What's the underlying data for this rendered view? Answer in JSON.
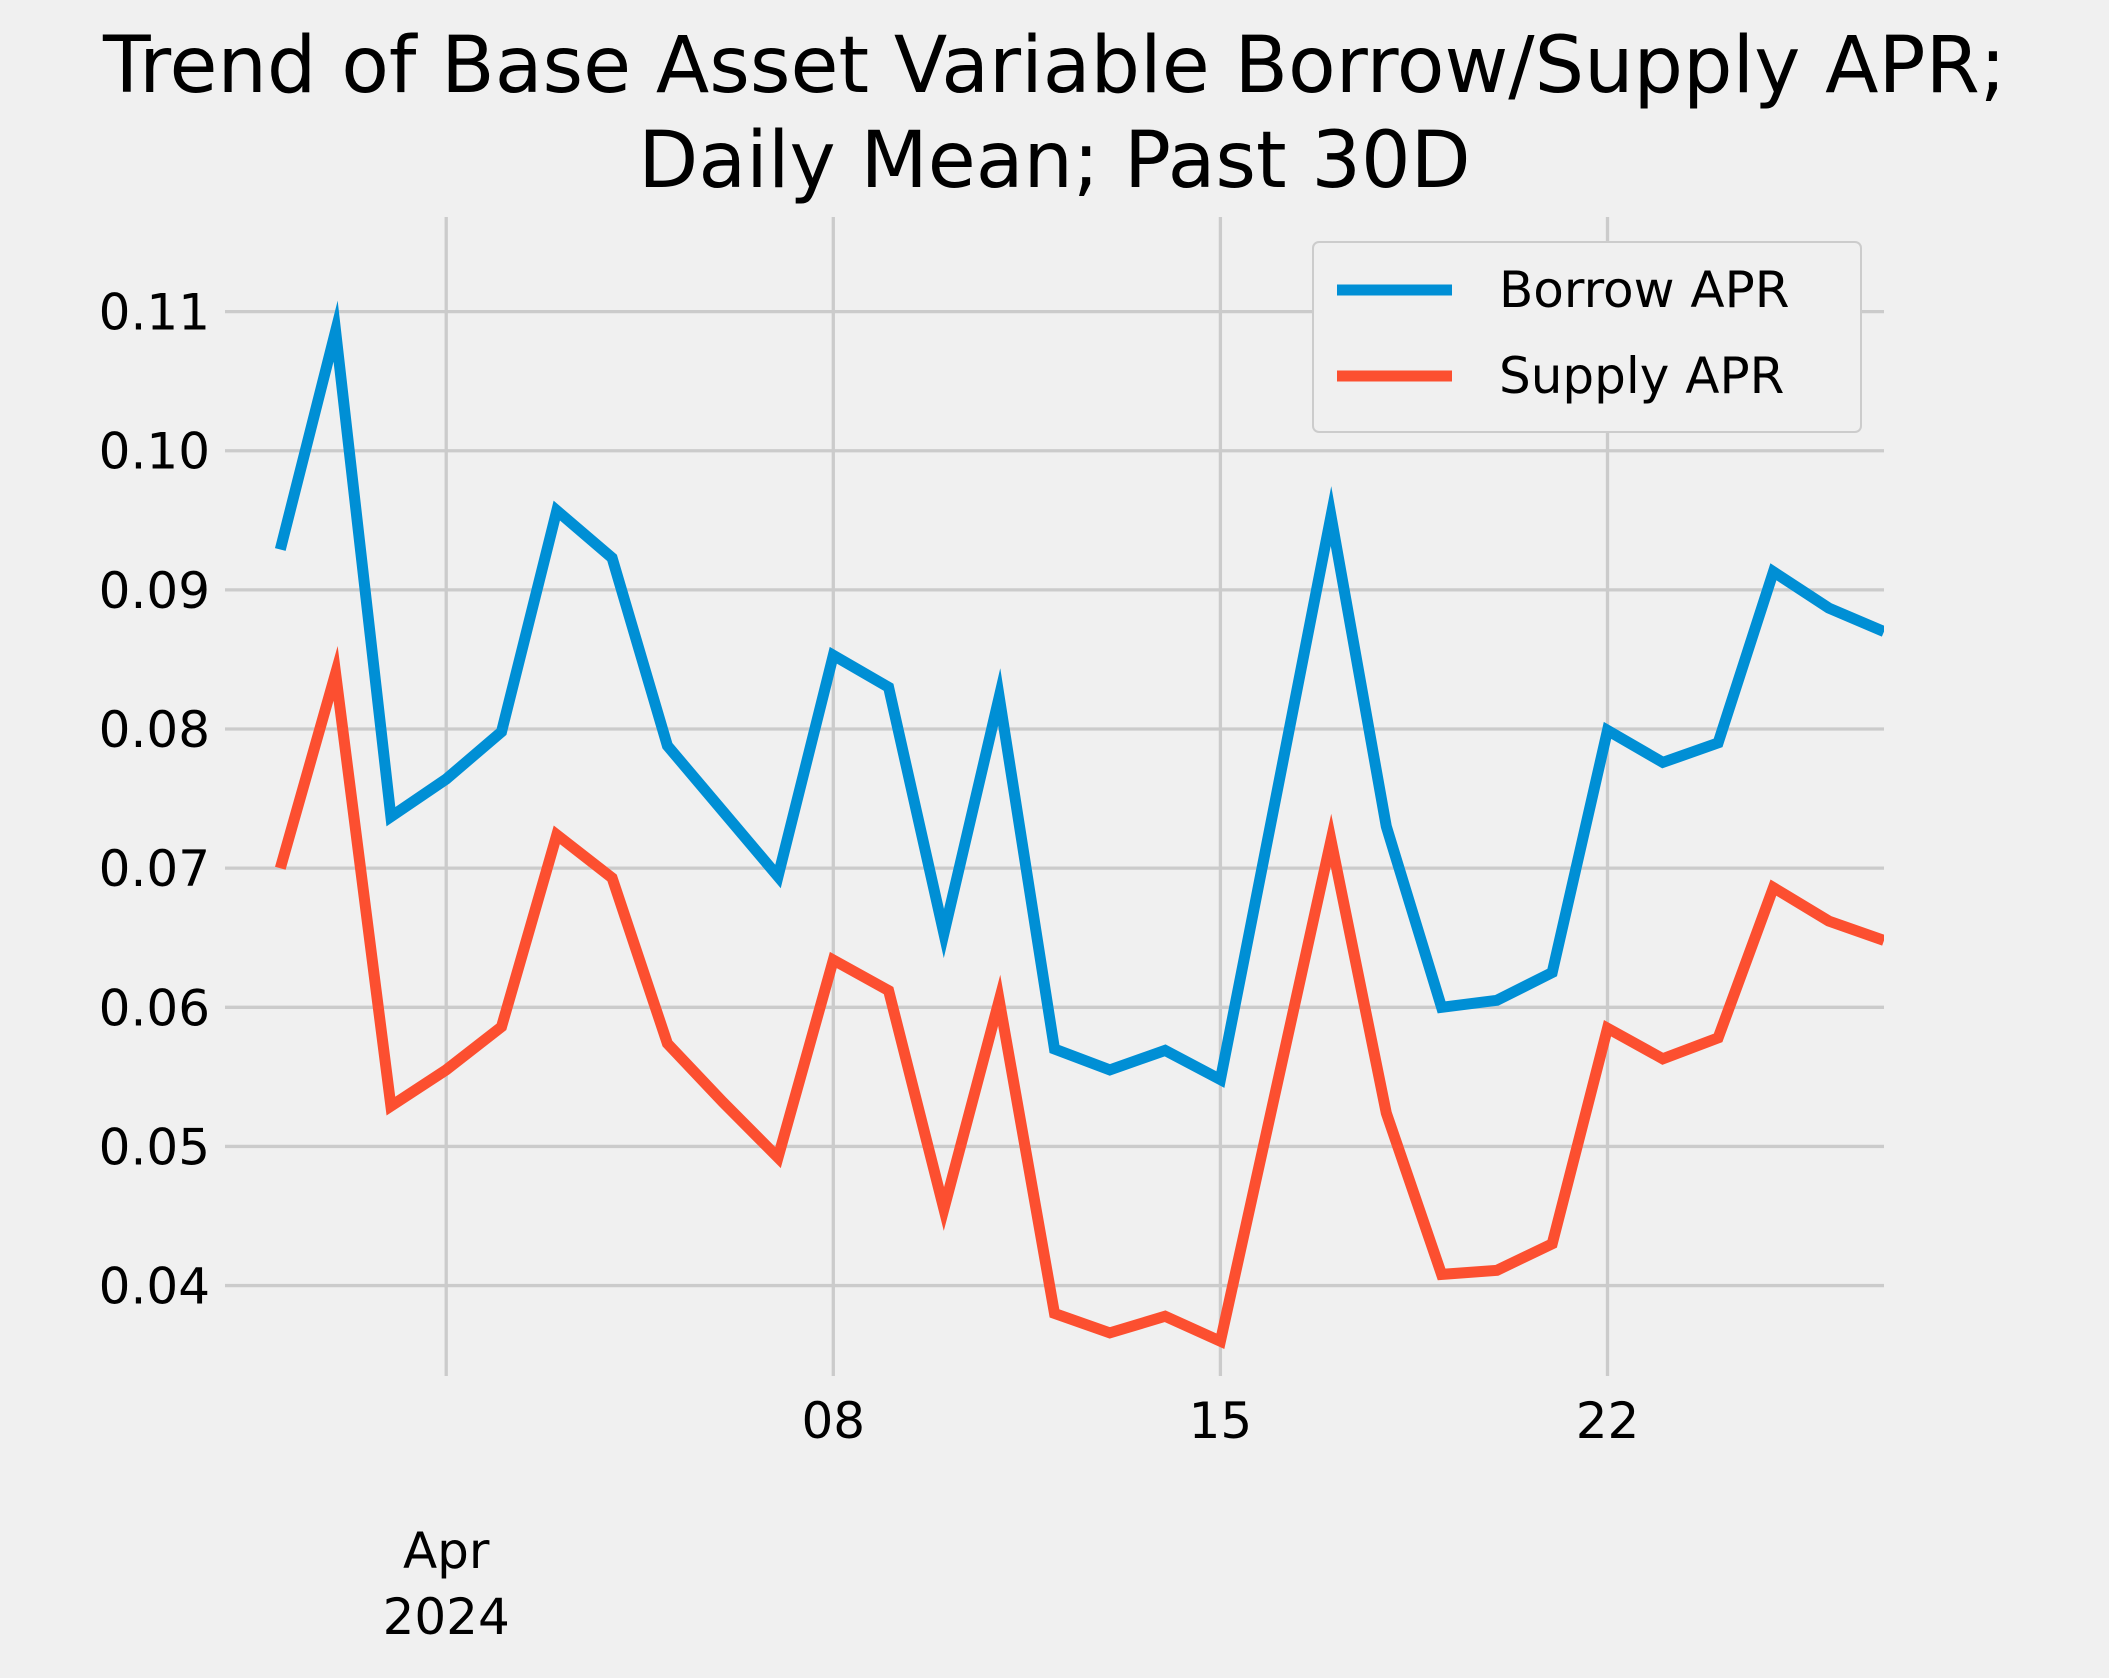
{
  "chart_data": {
    "type": "line",
    "title": "Trend of Base Asset Variable Borrow/Supply APR;",
    "subtitle": "Daily Mean; Past 30D",
    "xlabel": "",
    "ylabel": "",
    "x": [
      "2024-03-29",
      "2024-03-30",
      "2024-03-31",
      "2024-04-01",
      "2024-04-02",
      "2024-04-03",
      "2024-04-04",
      "2024-04-05",
      "2024-04-06",
      "2024-04-07",
      "2024-04-08",
      "2024-04-09",
      "2024-04-10",
      "2024-04-11",
      "2024-04-12",
      "2024-04-13",
      "2024-04-14",
      "2024-04-15",
      "2024-04-16",
      "2024-04-17",
      "2024-04-18",
      "2024-04-19",
      "2024-04-20",
      "2024-04-21",
      "2024-04-22",
      "2024-04-23",
      "2024-04-24",
      "2024-04-25",
      "2024-04-26",
      "2024-04-27"
    ],
    "xlim": [
      "2024-03-28",
      "2024-04-27"
    ],
    "ylim": [
      0.0335,
      0.1168
    ],
    "yticks": [
      0.04,
      0.05,
      0.06,
      0.07,
      0.08,
      0.09,
      0.1,
      0.11
    ],
    "ytick_labels": [
      "0.04",
      "0.05",
      "0.06",
      "0.07",
      "0.08",
      "0.09",
      "0.10",
      "0.11"
    ],
    "xticks": [
      {
        "date": "2024-04-01",
        "label": "Apr",
        "label2": "2024"
      },
      {
        "date": "2024-04-08",
        "label": "08"
      },
      {
        "date": "2024-04-15",
        "label": "15"
      },
      {
        "date": "2024-04-22",
        "label": "22"
      }
    ],
    "series": [
      {
        "name": "Borrow APR",
        "color": "#008fd5",
        "values": [
          0.0929,
          0.1086,
          0.0737,
          0.0764,
          0.0798,
          0.0957,
          0.0923,
          0.0788,
          0.0741,
          0.0694,
          0.0853,
          0.083,
          0.0653,
          0.0823,
          0.057,
          0.0555,
          0.0569,
          0.0548,
          0.075,
          0.0953,
          0.073,
          0.06,
          0.0605,
          0.0625,
          0.0799,
          0.0776,
          0.079,
          0.0913,
          0.0887,
          0.087
        ]
      },
      {
        "name": "Supply APR",
        "color": "#fc4f30",
        "values": [
          0.07,
          0.084,
          0.0529,
          0.0555,
          0.0586,
          0.0724,
          0.0693,
          0.0574,
          0.0532,
          0.0492,
          0.0634,
          0.0612,
          0.0455,
          0.0605,
          0.038,
          0.0366,
          0.0378,
          0.036,
          0.054,
          0.072,
          0.0524,
          0.0408,
          0.0411,
          0.043,
          0.0585,
          0.0563,
          0.0578,
          0.0686,
          0.0662,
          0.0648
        ]
      }
    ],
    "grid": true,
    "legend": {
      "position": "top-right",
      "entries": [
        "Borrow APR",
        "Supply APR"
      ]
    }
  }
}
